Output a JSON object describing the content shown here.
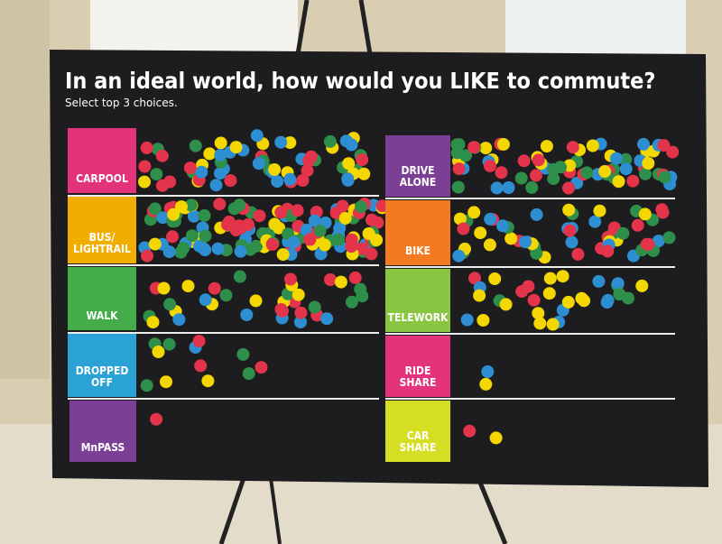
{
  "board": {
    "title": "In an ideal world, how would you LIKE to commute?",
    "subtitle": "Select top 3 choices.",
    "options": [
      {
        "lines": [
          "CARPOOL"
        ]
      },
      {
        "lines": [
          "BUS/",
          "LIGHTRAIL"
        ]
      },
      {
        "lines": [
          "WALK"
        ]
      },
      {
        "lines": [
          "DROPPED",
          "OFF"
        ]
      },
      {
        "lines": [
          "MnPASS"
        ]
      },
      {
        "lines": [
          "DRIVE",
          "ALONE"
        ]
      },
      {
        "lines": [
          "BIKE"
        ]
      },
      {
        "lines": [
          "TELEWORK"
        ]
      },
      {
        "lines": [
          "RIDE",
          "SHARE"
        ]
      },
      {
        "lines": [
          "CAR",
          "SHARE"
        ]
      }
    ]
  }
}
